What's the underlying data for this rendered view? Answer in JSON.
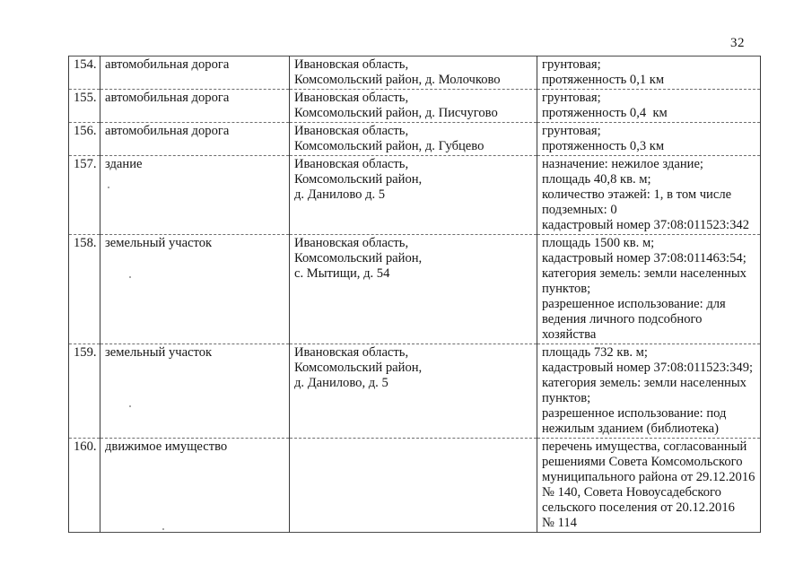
{
  "page": {
    "number": "32"
  },
  "colors": {
    "text": "#151515",
    "grid_solid": "#3a3a3a",
    "grid_dashed": "#6e6e6e",
    "paper": "#ffffff"
  },
  "table": {
    "rows": [
      {
        "num": "154.",
        "name": "автомобильная дорога",
        "location": "Ивановская область,\nКомсомольский район, д. Молочково",
        "details": "грунтовая;\nпротяженность 0,1 км"
      },
      {
        "num": "155.",
        "name": "автомобильная дорога",
        "location": "Ивановская область,\nКомсомольский район, д. Писчугово",
        "details": "грунтовая;\nпротяженность 0,4  км"
      },
      {
        "num": "156.",
        "name": "автомобильная дорога",
        "location": "Ивановская область,\nКомсомольский район, д. Губцево",
        "details": "грунтовая;\nпротяженность 0,3 км"
      },
      {
        "num": "157.",
        "name": "здание",
        "location": "Ивановская область,\nКомсомольский район,\nд. Данилово д. 5",
        "details": "назначение: нежилое здание;\nплощадь 40,8 кв. м;\nколичество этажей: 1, в том числе\nподземных: 0\nкадастровый номер 37:08:011523:342"
      },
      {
        "num": "158.",
        "name": "земельный участок",
        "location": "Ивановская область,\nКомсомольский район,\nс. Мытищи, д. 54",
        "details": "площадь 1500 кв. м;\nкадастровый номер 37:08:011463:54;\nкатегория земель: земли населенных\nпунктов;\nразрешенное использование: для\nведения личного подсобного\nхозяйства"
      },
      {
        "num": "159.",
        "name": "земельный участок",
        "location": "Ивановская область,\nКомсомольский район,\nд. Данилово, д. 5",
        "details": "площадь 732 кв. м;\nкадастровый номер 37:08:011523:349;\nкатегория земель: земли населенных\nпунктов;\nразрешенное использование: под\nнежилым зданием (библиотека)"
      },
      {
        "num": "160.",
        "name": "движимое имущество",
        "location": "",
        "details": "перечень имущества, согласованный\nрешениями Совета Комсомольского\nмуниципального района от 29.12.2016\n№ 140, Совета Новоусадебского\nсельского поселения от 20.12.2016\n№ 114"
      }
    ]
  }
}
